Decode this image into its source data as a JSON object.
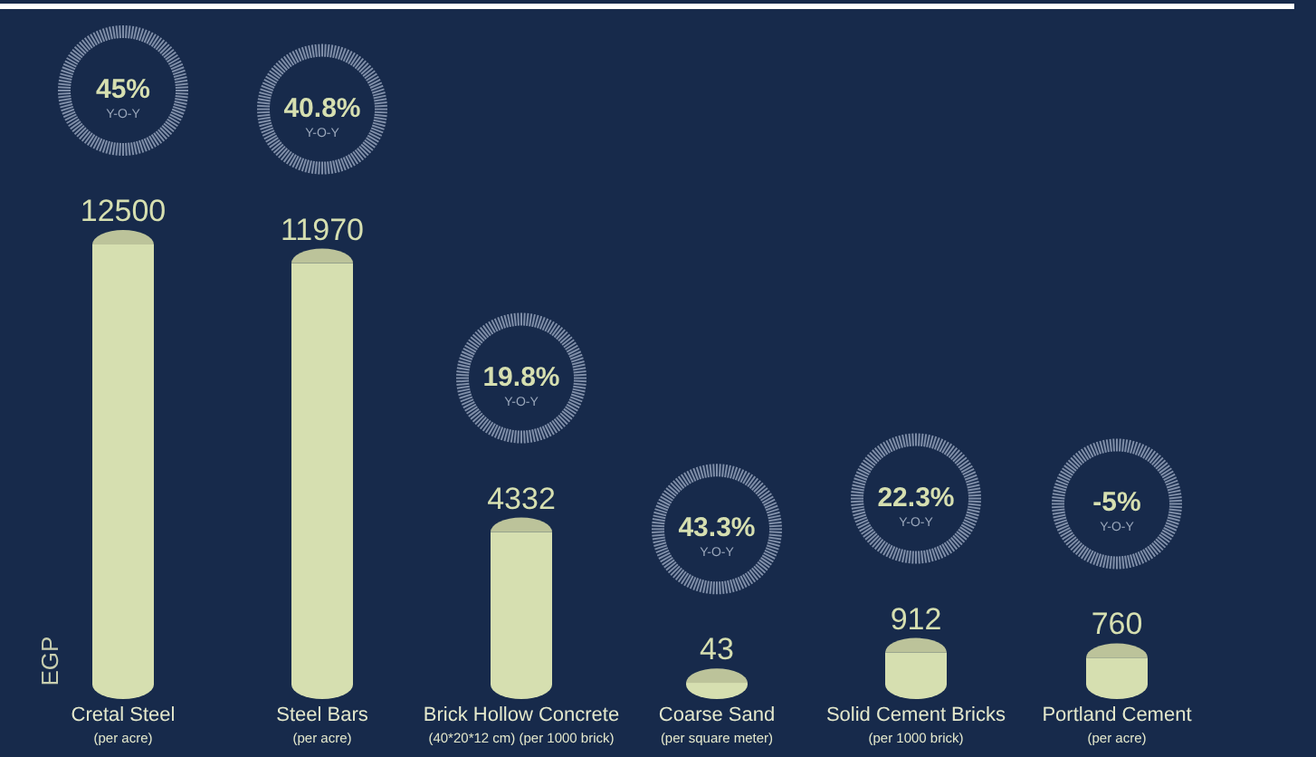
{
  "chart_data": {
    "type": "bar",
    "ylabel": "EGP",
    "color": "#d6dfb0",
    "data_labels": true,
    "categories": [
      "Cretal Steel\n(per acre)",
      "Steel Bars\n(per acre)",
      "Brick Hollow Concrete\n(40*20*12 cm) (per 1000 brick)",
      "Coarse Sand\n(per square meter)",
      "Solid Cement Bricks\n(per 1000 brick)",
      "Portland Cement\n(per acre)"
    ],
    "values": [
      12500,
      11970,
      4332,
      43,
      912,
      760
    ],
    "annotations": [
      "45%\nY-O-Y",
      "40.8%\nY-O-Y",
      "19.8%\nY-O-Y",
      "43.3%\nY-O-Y",
      "22.3%\nY-O-Y",
      "-5%\nY-O-Y"
    ]
  }
}
